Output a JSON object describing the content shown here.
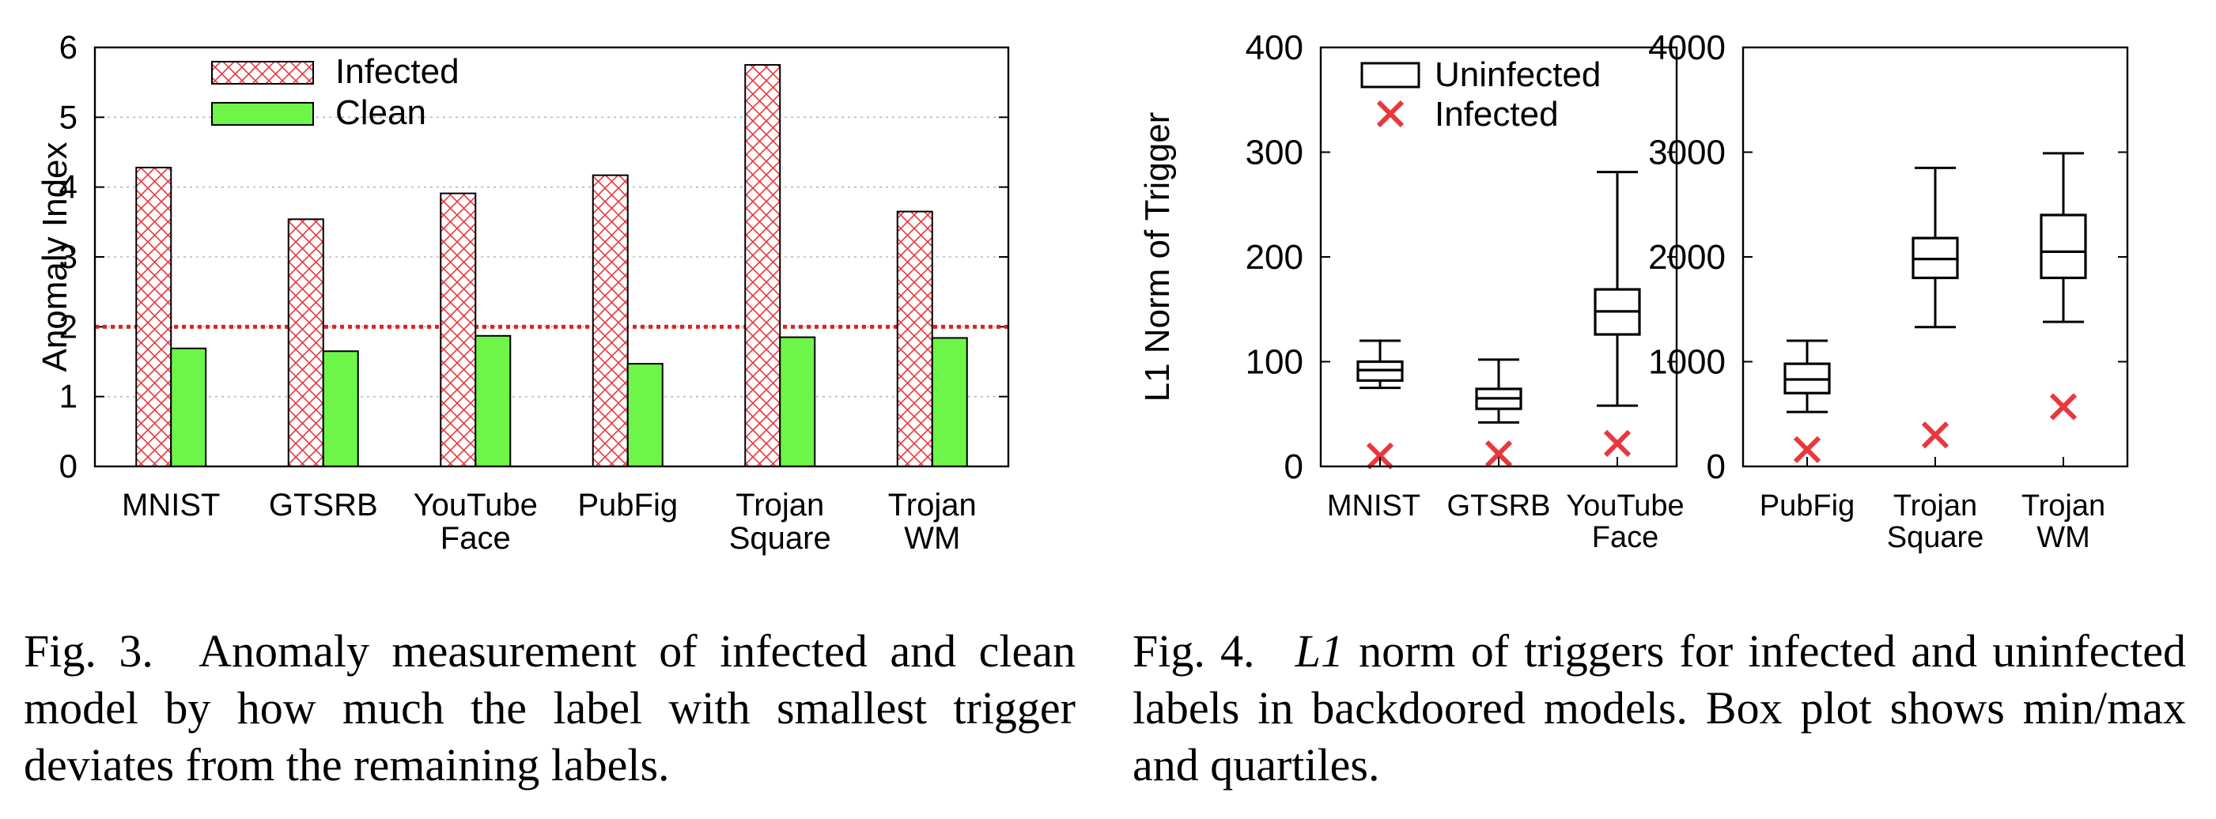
{
  "fig3": {
    "chart_data": {
      "type": "bar",
      "ylabel": "Anomaly Index",
      "ylim": [
        0,
        6
      ],
      "yticks": [
        0,
        1,
        2,
        3,
        4,
        5,
        6
      ],
      "categories": [
        [
          "MNIST"
        ],
        [
          "GTSRB"
        ],
        [
          "YouTube",
          "Face"
        ],
        [
          "PubFig"
        ],
        [
          "Trojan",
          "Square"
        ],
        [
          "Trojan",
          "WM"
        ]
      ],
      "series": [
        {
          "name": "Infected",
          "values": [
            4.28,
            3.54,
            3.91,
            4.17,
            5.75,
            3.65
          ],
          "color": "#e8383d",
          "pattern": "crosshatch"
        },
        {
          "name": "Clean",
          "values": [
            1.69,
            1.65,
            1.87,
            1.47,
            1.85,
            1.84
          ],
          "color": "#6ef54a"
        }
      ],
      "threshold": {
        "value": 2,
        "color": "#dd2222",
        "style": "dotted"
      },
      "grid": "horizontal-dotted",
      "legend_position": "top-left"
    },
    "caption": {
      "label": "Fig. 3.",
      "text": "Anomaly measurement of infected and clean model by how much the label with smallest trigger deviates from the remaining labels."
    }
  },
  "fig4": {
    "chart_data": [
      {
        "type": "box",
        "ylabel": "L1 Norm of Trigger",
        "ylim": [
          0,
          400
        ],
        "yticks": [
          0,
          100,
          200,
          300,
          400
        ],
        "categories": [
          [
            "MNIST"
          ],
          [
            "GTSRB"
          ],
          [
            "YouTube",
            "Face"
          ]
        ],
        "boxes": [
          {
            "min": 75,
            "q1": 82,
            "median": 92,
            "q3": 100,
            "max": 120
          },
          {
            "min": 42,
            "q1": 55,
            "median": 65,
            "q3": 74,
            "max": 102
          },
          {
            "min": 58,
            "q1": 126,
            "median": 148,
            "q3": 169,
            "max": 281
          }
        ],
        "infected": [
          10,
          12,
          22
        ],
        "legend": [
          "Uninfected",
          "Infected"
        ],
        "legend_position": "top-left",
        "marker_color": "#e8383d"
      },
      {
        "type": "box",
        "ylim": [
          0,
          4000
        ],
        "yticks": [
          0,
          1000,
          2000,
          3000,
          4000
        ],
        "categories": [
          [
            "PubFig"
          ],
          [
            "Trojan",
            "Square"
          ],
          [
            "Trojan",
            "WM"
          ]
        ],
        "boxes": [
          {
            "min": 520,
            "q1": 700,
            "median": 830,
            "q3": 980,
            "max": 1200
          },
          {
            "min": 1330,
            "q1": 1800,
            "median": 1980,
            "q3": 2180,
            "max": 2850
          },
          {
            "min": 1380,
            "q1": 1800,
            "median": 2050,
            "q3": 2400,
            "max": 2990
          }
        ],
        "infected": [
          160,
          300,
          570
        ],
        "marker_color": "#e8383d"
      }
    ],
    "caption": {
      "label": "Fig. 4.",
      "math": "L1",
      "text": "norm of triggers for infected and uninfected labels in backdoored models. Box plot shows min/max and quartiles."
    }
  }
}
